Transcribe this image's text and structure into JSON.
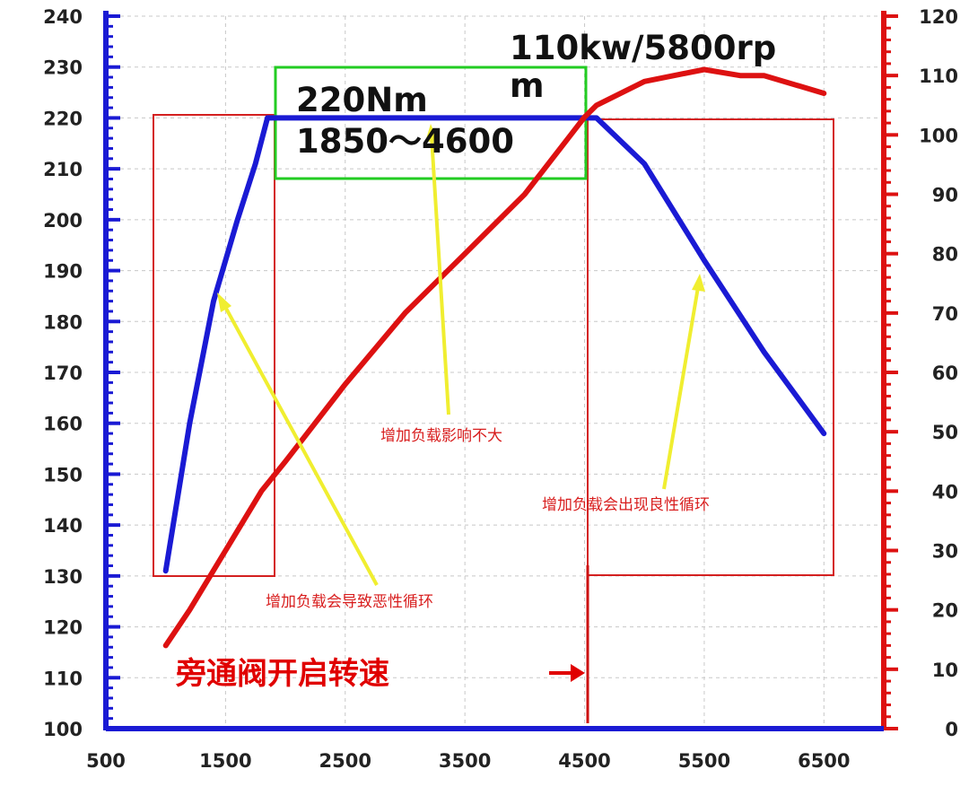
{
  "chart_data": {
    "type": "line",
    "x_ticks": [
      "500",
      "1500",
      "2500",
      "3500",
      "4500",
      "5500",
      "6500"
    ],
    "y_left_ticks": [
      "100",
      "110",
      "120",
      "130",
      "140",
      "150",
      "160",
      "170",
      "180",
      "190",
      "200",
      "210",
      "220",
      "230",
      "240"
    ],
    "y_right_ticks": [
      "0",
      "10",
      "20",
      "30",
      "40",
      "50",
      "60",
      "70",
      "80",
      "90",
      "100",
      "110",
      "120"
    ],
    "xlim": [
      500,
      7000
    ],
    "ylim_left": [
      100,
      240
    ],
    "ylim_right": [
      0,
      120
    ],
    "series": [
      {
        "axis": "left",
        "color": "#1a1ad4",
        "x": [
          1000,
          1200,
          1400,
          1600,
          1750,
          1850,
          2000,
          2500,
          3000,
          3500,
          4000,
          4500,
          4600,
          5000,
          5500,
          6000,
          6500
        ],
        "y": [
          131,
          160,
          184,
          200,
          211,
          220,
          220,
          220,
          220,
          220,
          220,
          220,
          220,
          211,
          192,
          174,
          158
        ]
      },
      {
        "axis": "right",
        "color": "#dd1111",
        "x": [
          1000,
          1200,
          1500,
          1800,
          2000,
          2500,
          3000,
          3500,
          4000,
          4500,
          4600,
          5000,
          5500,
          5800,
          6000,
          6500
        ],
        "y": [
          14,
          20,
          30,
          40,
          45,
          58,
          70,
          80,
          90,
          103,
          105,
          109,
          111,
          110,
          110,
          107
        ]
      }
    ],
    "annotations": {
      "power_peak_line1": "110kw/5800rp",
      "power_peak_line2": "m",
      "torque_peak_line1": "220Nm",
      "torque_peak_line2": "1850～4600",
      "note_middle": "增加负载影响不大",
      "note_right": "增加负载会出现良性循环",
      "note_left": "增加负载会导致恶性循环",
      "bypass_valve": "旁通阀开启转速"
    },
    "bypass_valve_rpm": 4500,
    "box_colors": {
      "red": "#d42020",
      "green": "#22cc22",
      "arrow": "#f0ee30"
    },
    "grid": true,
    "legend": "none"
  }
}
